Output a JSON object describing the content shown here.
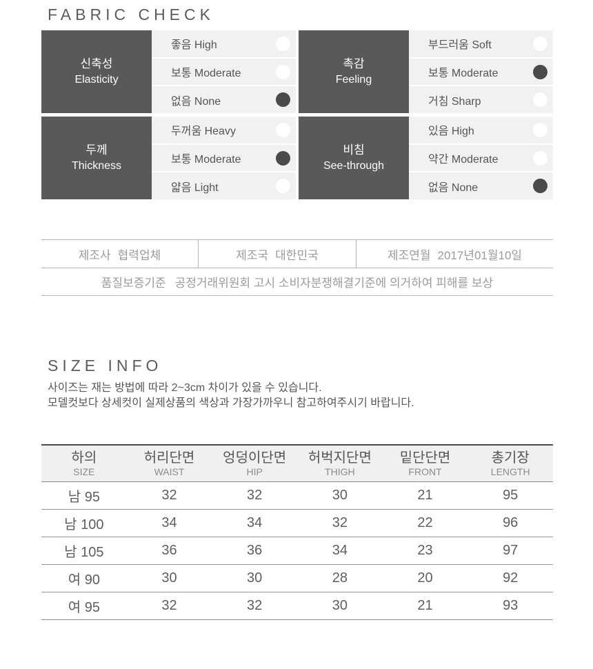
{
  "fabric_check": {
    "title": "FABRIC CHECK",
    "groups": [
      {
        "label_ko": "신축성",
        "label_en": "Elasticity",
        "options": [
          {
            "label": "좋음 High",
            "selected": false
          },
          {
            "label": "보통 Moderate",
            "selected": false
          },
          {
            "label": "없음 None",
            "selected": true
          }
        ]
      },
      {
        "label_ko": "촉감",
        "label_en": "Feeling",
        "options": [
          {
            "label": "부드러움 Soft",
            "selected": false
          },
          {
            "label": "보통 Moderate",
            "selected": true
          },
          {
            "label": "거침 Sharp",
            "selected": false
          }
        ]
      },
      {
        "label_ko": "두께",
        "label_en": "Thickness",
        "options": [
          {
            "label": "두꺼움 Heavy",
            "selected": false
          },
          {
            "label": "보통 Moderate",
            "selected": true
          },
          {
            "label": "얇음 Light",
            "selected": false
          }
        ]
      },
      {
        "label_ko": "비침",
        "label_en": "See-through",
        "options": [
          {
            "label": "있음 High",
            "selected": false
          },
          {
            "label": "약간 Moderate",
            "selected": false
          },
          {
            "label": "없음 None",
            "selected": true
          }
        ]
      }
    ]
  },
  "manufacture": {
    "cells": [
      {
        "label": "제조사",
        "value": "협력업체"
      },
      {
        "label": "제조국",
        "value": "대한민국"
      },
      {
        "label": "제조연월",
        "value": "2017년01월10일"
      }
    ],
    "warranty_label": "품질보증기준",
    "warranty_value": "공정거래위원회 고시 소비자분쟁해결기준에 의거하여 피해를 보상"
  },
  "size_info": {
    "title": "SIZE INFO",
    "notes": [
      "사이즈는 재는 방법에 따라 2~3cm 차이가 있을 수 있습니다.",
      "모델컷보다 상세컷이 실제상품의 색상과 가장가까우니 참고하여주시기 바랍니다."
    ],
    "table": {
      "type": "table",
      "columns": [
        {
          "ko": "하의",
          "en": "SIZE"
        },
        {
          "ko": "허리단면",
          "en": "WAIST"
        },
        {
          "ko": "엉덩이단면",
          "en": "HIP"
        },
        {
          "ko": "허벅지단면",
          "en": "THIGH"
        },
        {
          "ko": "밑단단면",
          "en": "FRONT"
        },
        {
          "ko": "총기장",
          "en": "LENGTH"
        }
      ],
      "rows": [
        [
          "남 95",
          "32",
          "32",
          "30",
          "21",
          "95"
        ],
        [
          "남 100",
          "34",
          "34",
          "32",
          "22",
          "96"
        ],
        [
          "남 105",
          "36",
          "36",
          "34",
          "23",
          "97"
        ],
        [
          "여 90",
          "30",
          "30",
          "28",
          "20",
          "92"
        ],
        [
          "여 95",
          "32",
          "32",
          "30",
          "21",
          "93"
        ]
      ]
    }
  },
  "colors": {
    "label_cell_bg": "#595959",
    "options_bg": "#f1f1f1",
    "selected_dot": "#4a4a4a",
    "unselected_dot": "#ffffff"
  }
}
